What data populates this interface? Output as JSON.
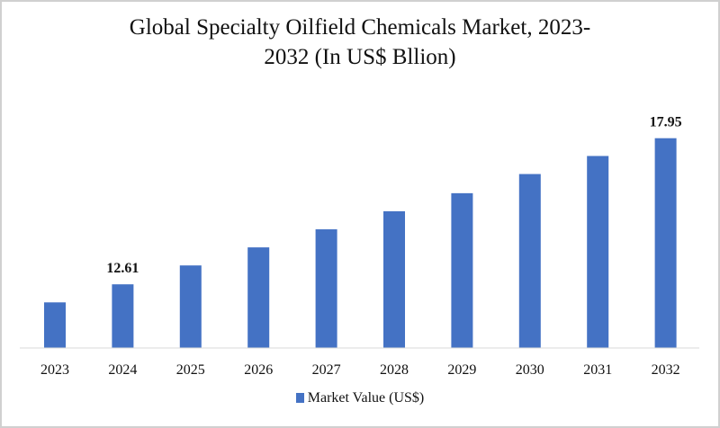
{
  "chart_data": {
    "type": "bar",
    "title_line1": "Global Specialty Oilfield Chemicals Market, 2023-",
    "title_line2": "2032 (In US$ Bllion)",
    "categories": [
      "2023",
      "2024",
      "2025",
      "2026",
      "2027",
      "2028",
      "2029",
      "2030",
      "2031",
      "2032"
    ],
    "series": [
      {
        "name": "Market Value (US$)",
        "values": [
          11.95,
          12.61,
          13.3,
          13.96,
          14.62,
          15.28,
          15.94,
          16.64,
          17.3,
          17.95
        ],
        "color": "#4472c4"
      }
    ],
    "data_labels": {
      "1": "12.61",
      "9": "17.95"
    },
    "xlabel": "",
    "ylabel": "",
    "ylim": [
      10.3,
      18.4
    ],
    "y_axis_visible": false,
    "grid": false,
    "legend": "bottom"
  }
}
